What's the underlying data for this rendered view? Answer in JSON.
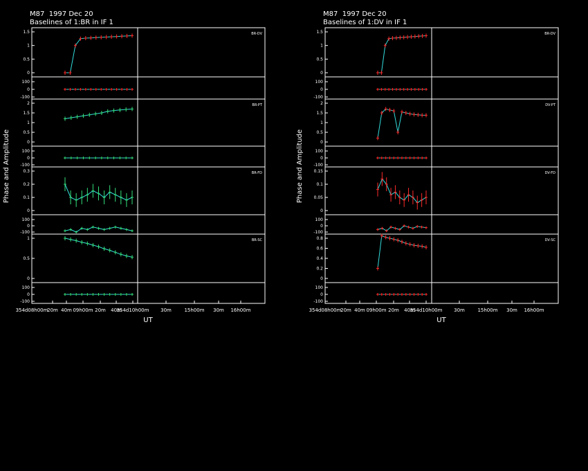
{
  "panels": [
    {
      "title1": "M87  1997 Dec 20",
      "title2": "Baselines of 1:BR in IF 1",
      "ylabel": "Phase and Amplitude",
      "xlabel": "UT",
      "xticks": [
        "354d08h00m",
        "20m",
        "40m",
        "09h00m",
        "20m",
        "40m",
        "354d10h00m",
        "30m",
        "15h00m",
        "30m",
        "16h00m"
      ],
      "baselines": [
        {
          "name": "BR-DV",
          "amp_ticks": [
            "1.5",
            "1",
            "0.5",
            "0"
          ],
          "phase_ticks": [
            "100",
            "0",
            "-100"
          ]
        },
        {
          "name": "BR-PT",
          "amp_ticks": [
            "2",
            "1.5",
            "1",
            "0.5",
            "0"
          ],
          "phase_ticks": [
            "100",
            "0",
            "-100"
          ]
        },
        {
          "name": "BR-FD",
          "amp_ticks": [
            "0.3",
            "0.2",
            "0.1",
            "0"
          ],
          "phase_ticks": [
            "100",
            "0",
            "-100"
          ]
        },
        {
          "name": "BR-SC",
          "amp_ticks": [
            "1",
            "0.5",
            "0"
          ],
          "phase_ticks": [
            "100",
            "0",
            "-100"
          ]
        }
      ]
    },
    {
      "title1": "M87  1997 Dec 20",
      "title2": "Baselines of 1:DV in IF 1",
      "ylabel": "Phase and Amplitude",
      "xlabel": "UT",
      "xticks": [
        "354d08h00m",
        "20m",
        "40m",
        "09h00m",
        "20m",
        "40m",
        "354d10h00m",
        "30m",
        "15h00m",
        "30m",
        "16h00m"
      ],
      "baselines": [
        {
          "name": "BR-DV",
          "amp_ticks": [
            "1.5",
            "1",
            "0.5",
            "0"
          ],
          "phase_ticks": [
            "100",
            "0",
            "-100"
          ]
        },
        {
          "name": "DV-PT",
          "amp_ticks": [
            "2",
            "1.5",
            "1",
            "0.5",
            "0"
          ],
          "phase_ticks": [
            "100",
            "0",
            "-100"
          ]
        },
        {
          "name": "DV-FD",
          "amp_ticks": [
            "0.15",
            "0.1",
            "0.05",
            "0"
          ],
          "phase_ticks": [
            "100",
            "0",
            "-100"
          ]
        },
        {
          "name": "DV-SC",
          "amp_ticks": [
            "0.8",
            "0.6",
            "0.4",
            "0.2",
            "0"
          ],
          "phase_ticks": [
            "100",
            "0",
            "-100"
          ]
        }
      ]
    }
  ],
  "colors": {
    "data_amp": "#ff2a2a",
    "data_alt": "#33e07a",
    "model": "#33dddd",
    "axes": "#ffffff",
    "background": "#000000"
  },
  "chart_data": [
    {
      "type": "scatter",
      "title": "M87  1997 Dec 20 - Baselines of 1:BR in IF 1",
      "xlabel": "UT",
      "ylabel": "Phase and Amplitude",
      "series": [
        {
          "name": "BR-DV",
          "amplitude": [
            0,
            0,
            1.0,
            1.25,
            1.27,
            1.28,
            1.29,
            1.3,
            1.31,
            1.32,
            1.33,
            1.34,
            1.35,
            1.36
          ],
          "phase": [
            0,
            0,
            0,
            0,
            0,
            0,
            0,
            0,
            0,
            0,
            0,
            0,
            0,
            0
          ]
        },
        {
          "name": "BR-PT",
          "amplitude": [
            1.2,
            1.25,
            1.3,
            1.35,
            1.4,
            1.45,
            1.5,
            1.58,
            1.62,
            1.65,
            1.68,
            1.7
          ],
          "phase": [
            0,
            0,
            0,
            0,
            0,
            0,
            0,
            0,
            0,
            0,
            0,
            0
          ]
        },
        {
          "name": "BR-FD",
          "amplitude": [
            0.2,
            0.1,
            0.08,
            0.1,
            0.12,
            0.15,
            0.13,
            0.1,
            0.14,
            0.12,
            0.1,
            0.08,
            0.1
          ],
          "phase": [
            -80,
            -60,
            -100,
            -40,
            -60,
            -20,
            -40,
            -60,
            -40,
            -20,
            -40,
            -60,
            -80
          ]
        },
        {
          "name": "BR-SC",
          "amplitude": [
            1.0,
            0.97,
            0.94,
            0.9,
            0.87,
            0.83,
            0.79,
            0.74,
            0.7,
            0.65,
            0.6,
            0.56,
            0.53
          ],
          "phase": [
            0,
            0,
            0,
            0,
            0,
            0,
            0,
            0,
            0,
            0,
            0,
            0,
            0
          ]
        }
      ]
    },
    {
      "type": "scatter",
      "title": "M87  1997 Dec 20 - Baselines of 1:DV in IF 1",
      "xlabel": "UT",
      "ylabel": "Phase and Amplitude",
      "series": [
        {
          "name": "BR-DV",
          "amplitude": [
            0,
            0,
            1.0,
            1.25,
            1.27,
            1.28,
            1.29,
            1.3,
            1.31,
            1.32,
            1.33,
            1.34,
            1.35,
            1.36
          ],
          "phase": [
            0,
            0,
            0,
            0,
            0,
            0,
            0,
            0,
            0,
            0,
            0,
            0,
            0,
            0
          ]
        },
        {
          "name": "DV-PT",
          "amplitude": [
            0.2,
            1.5,
            1.7,
            1.65,
            1.6,
            0.5,
            1.55,
            1.5,
            1.45,
            1.42,
            1.4,
            1.38,
            1.38
          ],
          "phase": [
            0,
            0,
            0,
            0,
            0,
            0,
            0,
            0,
            0,
            0,
            0,
            0,
            0
          ]
        },
        {
          "name": "DV-FD",
          "amplitude": [
            0.08,
            0.12,
            0.1,
            0.06,
            0.07,
            0.05,
            0.04,
            0.06,
            0.05,
            0.03,
            0.04,
            0.05
          ],
          "phase": [
            -60,
            -40,
            -80,
            -20,
            -40,
            -60,
            0,
            -20,
            -40,
            -10,
            -20,
            -30
          ]
        },
        {
          "name": "DV-SC",
          "amplitude": [
            0.2,
            0.85,
            0.82,
            0.8,
            0.78,
            0.76,
            0.73,
            0.7,
            0.68,
            0.66,
            0.65,
            0.64,
            0.62
          ],
          "phase": [
            0,
            0,
            0,
            0,
            0,
            0,
            0,
            0,
            0,
            0,
            0,
            0,
            0
          ]
        }
      ]
    }
  ]
}
